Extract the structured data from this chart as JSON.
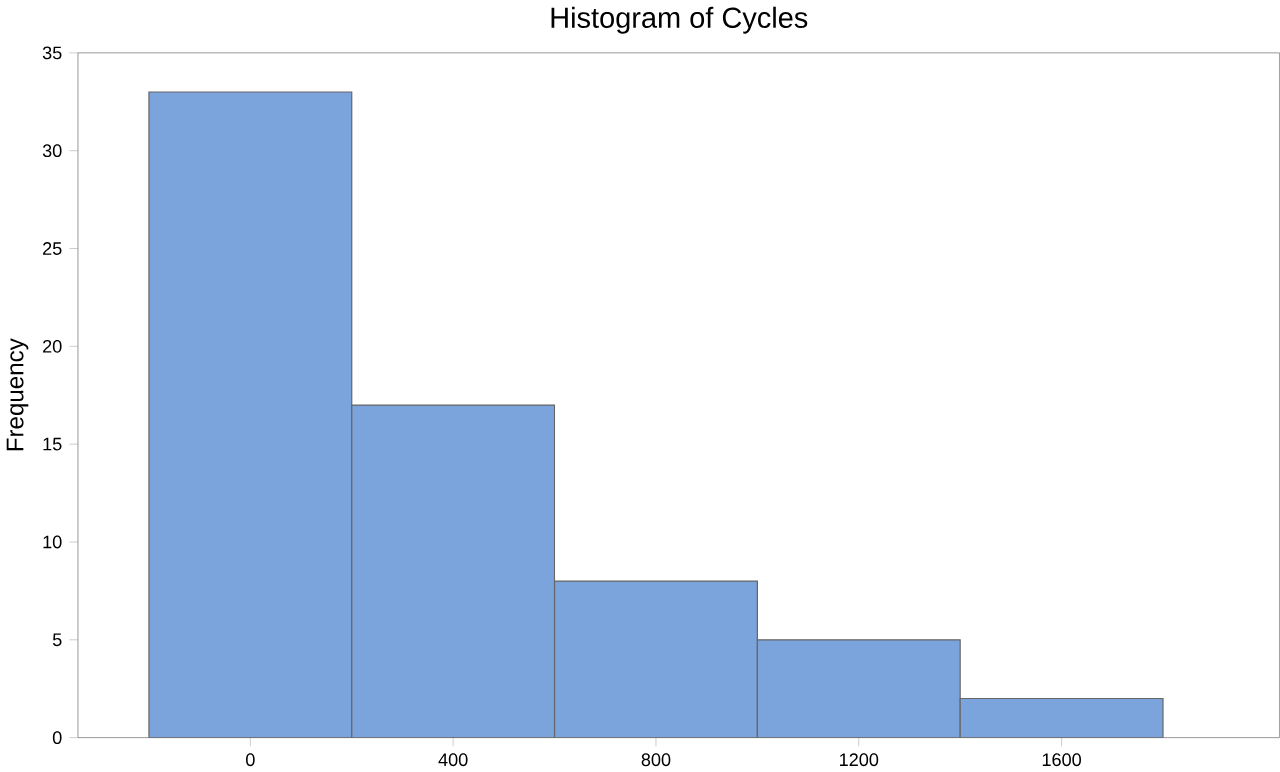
{
  "chart_data": {
    "type": "histogram",
    "title": "Histogram of Cycles",
    "ylabel": "Frequency",
    "bins": [
      -200,
      200,
      600,
      1000,
      1400,
      1800
    ],
    "values": [
      33,
      17,
      8,
      5,
      2
    ],
    "color": "#7ba3dc",
    "xlim": [
      -340,
      2030
    ],
    "ylim": [
      0,
      35
    ],
    "xticks": [
      0,
      400,
      800,
      1200,
      1600
    ],
    "yticks": [
      0,
      5,
      10,
      15,
      20,
      25,
      30,
      35
    ]
  }
}
